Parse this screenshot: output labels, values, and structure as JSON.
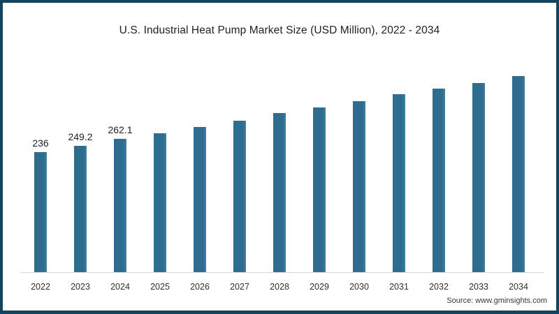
{
  "chart": {
    "colors": {
      "background": "#ffffff",
      "frame_border": "#12455c",
      "bar_fill": "#2e6d90",
      "bar_fill_edge": "#47809e",
      "axis_line": "#d8d8d8",
      "title_text": "#1f1f1f",
      "tick_text": "#2e2e2e",
      "data_label_text": "#1f1f1f",
      "source_text": "#383838"
    }
  },
  "chart_data": {
    "type": "bar",
    "title": "U.S. Industrial Heat Pump Market Size (USD Million), 2022 - 2034",
    "source": "Source: www.gminsights.com",
    "categories": [
      "2022",
      "2023",
      "2024",
      "2025",
      "2026",
      "2027",
      "2028",
      "2029",
      "2030",
      "2031",
      "2032",
      "2033",
      "2034"
    ],
    "values": [
      236,
      249.2,
      262.1,
      274,
      286,
      299,
      313,
      325,
      337,
      351,
      362,
      373,
      386
    ],
    "data_labels": [
      "236",
      "249.2",
      "262.1",
      "",
      "",
      "",
      "",
      "",
      "",
      "",
      "",
      "",
      ""
    ],
    "xlabel": "",
    "ylabel": "",
    "ylim": [
      0,
      400
    ],
    "grid": false,
    "legend": false
  }
}
